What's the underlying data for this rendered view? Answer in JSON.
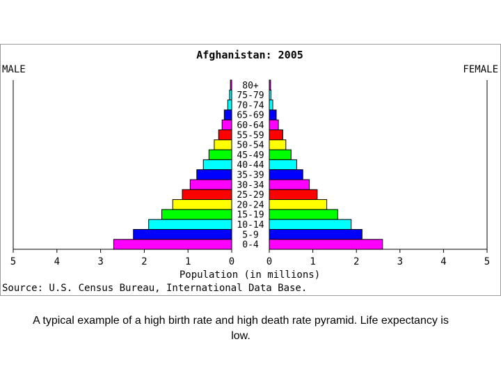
{
  "chart_data": {
    "type": "bar",
    "title": "Afghanistan: 2005",
    "left_label": "MALE",
    "right_label": "FEMALE",
    "xlabel": "Population (in millions)",
    "source": "Source: U.S. Census Bureau, International Data Base.",
    "categories": [
      "80+",
      "75-79",
      "70-74",
      "65-69",
      "60-64",
      "55-59",
      "50-54",
      "45-49",
      "40-44",
      "35-39",
      "30-34",
      "25-29",
      "20-24",
      "15-19",
      "10-14",
      "5-9",
      "0-4"
    ],
    "colors": [
      "#ff00ff",
      "#00ffff",
      "#00ffff",
      "#0000ff",
      "#ff00ff",
      "#ff0000",
      "#ffff00",
      "#00ff00",
      "#00ffff",
      "#0000ff",
      "#ff00ff",
      "#ff0000",
      "#ffff00",
      "#00ff00",
      "#00ffff",
      "#0000ff",
      "#ff00ff"
    ],
    "series": [
      {
        "name": "MALE",
        "values": [
          0.03,
          0.05,
          0.09,
          0.17,
          0.22,
          0.3,
          0.4,
          0.52,
          0.65,
          0.8,
          0.95,
          1.13,
          1.35,
          1.6,
          1.9,
          2.25,
          2.7
        ]
      },
      {
        "name": "FEMALE",
        "values": [
          0.03,
          0.04,
          0.08,
          0.16,
          0.21,
          0.31,
          0.38,
          0.5,
          0.63,
          0.77,
          0.92,
          1.1,
          1.32,
          1.57,
          1.88,
          2.13,
          2.6
        ]
      }
    ],
    "xlim": [
      0,
      5
    ],
    "male_ticks": [
      "5",
      "4",
      "3",
      "2",
      "1",
      "0"
    ],
    "female_ticks": [
      "0",
      "1",
      "2",
      "3",
      "4",
      "5"
    ]
  },
  "caption": "A typical example of a high birth rate and high death rate pyramid.  Life expectancy is low."
}
